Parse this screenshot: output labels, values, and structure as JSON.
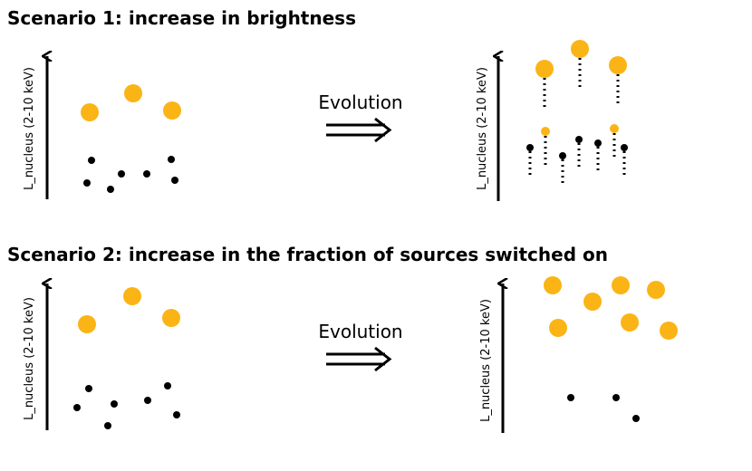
{
  "scenarios": [
    {
      "title": "Scenario 1: increase in brightness",
      "axis_label_before": "L_nucleus (2-10 keV)",
      "arrow_label": "Evolution",
      "axis_label_after": "L_nucleus (2-10 keV)"
    },
    {
      "title": "Scenario 2: increase in the fraction of sources switched on",
      "axis_label_before": "L_nucleus (2-10 keV)",
      "arrow_label": "Evolution",
      "axis_label_after": "L_nucleus (2-10 keV)"
    }
  ]
}
